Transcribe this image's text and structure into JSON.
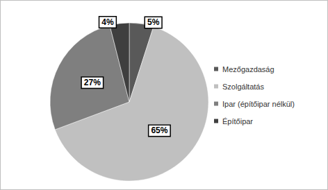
{
  "chart_data": {
    "type": "pie",
    "categories": [
      "Mezőgazdaság",
      "Szolgáltatás",
      "Ipar (építőipar nélkül)",
      "Építőipar"
    ],
    "values": [
      5,
      65,
      27,
      4
    ],
    "value_labels": [
      "5%",
      "65%",
      "27%",
      "4%"
    ],
    "colors": [
      "#595959",
      "#c0c0c0",
      "#7f7f7f",
      "#3f3f3f"
    ],
    "data_labels": true,
    "legend": "right"
  }
}
